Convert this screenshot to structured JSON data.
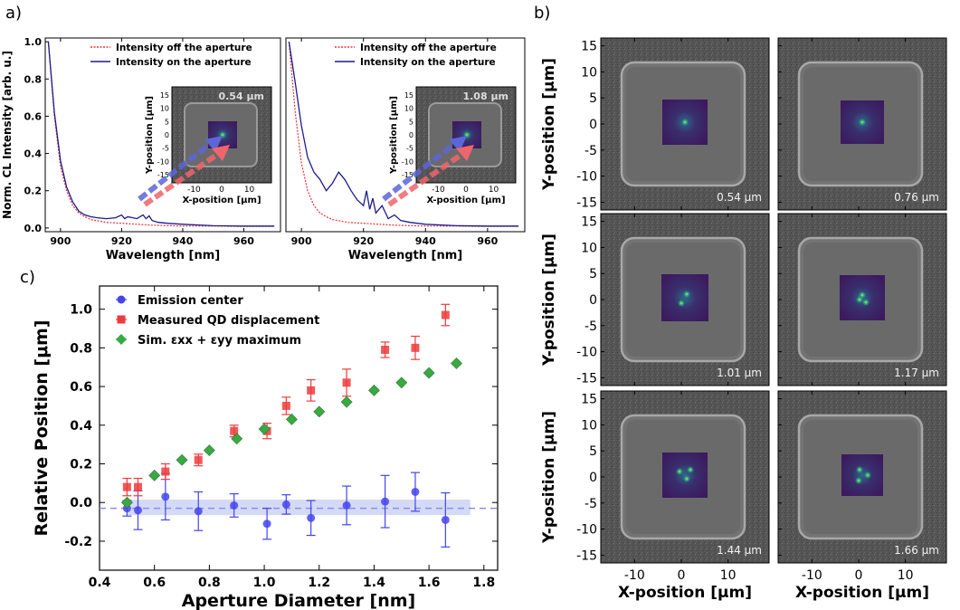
{
  "figure": {
    "panel_labels": [
      "a)",
      "b)",
      "c)"
    ]
  },
  "chart_data": [
    {
      "id": "a1",
      "type": "line",
      "xlabel": "Wavelength [nm]",
      "ylabel": "Norm. CL Intensity [arb. u.]",
      "xlim": [
        895,
        972
      ],
      "ylim": [
        -0.02,
        1.02
      ],
      "xticks": [
        900,
        920,
        940,
        960
      ],
      "yticks": [
        0.0,
        0.2,
        0.4,
        0.6,
        0.8,
        1.0
      ],
      "legend_position": "top-right",
      "series": [
        {
          "name": "Intensity off the aperture",
          "color": "#e8333a",
          "style": "dotted",
          "x": [
            896,
            898,
            900,
            902,
            904,
            906,
            908,
            910,
            915,
            920,
            925,
            930,
            940,
            950,
            960,
            970
          ],
          "y": [
            1.0,
            0.6,
            0.33,
            0.2,
            0.12,
            0.08,
            0.06,
            0.045,
            0.03,
            0.025,
            0.02,
            0.015,
            0.01,
            0.01,
            0.008,
            0.008
          ]
        },
        {
          "name": "Intensity on the aperture",
          "color": "#1c1c8c",
          "style": "solid",
          "x": [
            896,
            898,
            900,
            902,
            904,
            906,
            908,
            910,
            912,
            915,
            918,
            920,
            921,
            922,
            925,
            927,
            928,
            929,
            930,
            932,
            935,
            940,
            950,
            960,
            970
          ],
          "y": [
            1.0,
            0.62,
            0.36,
            0.22,
            0.14,
            0.09,
            0.07,
            0.06,
            0.055,
            0.05,
            0.055,
            0.07,
            0.05,
            0.06,
            0.05,
            0.07,
            0.05,
            0.065,
            0.04,
            0.03,
            0.025,
            0.02,
            0.012,
            0.01,
            0.01
          ]
        }
      ],
      "inset": {
        "label": "0.54 μm",
        "xlabel": "X-position [μm]",
        "ylabel": "Y-position [μm]",
        "xticks": [
          -10,
          0,
          10
        ],
        "yticks": [
          15,
          10,
          5,
          0,
          -5,
          -10,
          -15
        ]
      }
    },
    {
      "id": "a2",
      "type": "line",
      "xlabel": "Wavelength [nm]",
      "xlim": [
        895,
        972
      ],
      "ylim": [
        -0.02,
        1.02
      ],
      "xticks": [
        900,
        920,
        940,
        960
      ],
      "legend_position": "top-right",
      "series": [
        {
          "name": "Intensity off the aperture",
          "color": "#e8333a",
          "style": "dotted",
          "x": [
            896,
            898,
            900,
            902,
            904,
            906,
            908,
            910,
            915,
            920,
            925,
            930,
            940,
            950,
            960,
            970
          ],
          "y": [
            1.0,
            0.62,
            0.35,
            0.2,
            0.12,
            0.08,
            0.06,
            0.045,
            0.03,
            0.025,
            0.02,
            0.015,
            0.01,
            0.01,
            0.008,
            0.008
          ]
        },
        {
          "name": "Intensity on the aperture",
          "color": "#1c1c8c",
          "style": "solid",
          "x": [
            896,
            898,
            900,
            902,
            904,
            906,
            908,
            910,
            912,
            914,
            916,
            918,
            920,
            921,
            922,
            923,
            924,
            926,
            928,
            930,
            932,
            935,
            940,
            950,
            960,
            970
          ],
          "y": [
            1.0,
            0.78,
            0.55,
            0.38,
            0.3,
            0.26,
            0.2,
            0.24,
            0.3,
            0.26,
            0.2,
            0.15,
            0.12,
            0.2,
            0.1,
            0.16,
            0.08,
            0.12,
            0.05,
            0.07,
            0.04,
            0.03,
            0.02,
            0.012,
            0.01,
            0.01
          ]
        }
      ],
      "inset": {
        "label": "1.08 μm",
        "xlabel": "X-position [μm]",
        "ylabel": "Y-position [μm]",
        "xticks": [
          -10,
          0,
          10
        ],
        "yticks": [
          15,
          10,
          5,
          0,
          -5,
          -10,
          -15
        ]
      }
    },
    {
      "id": "c",
      "type": "scatter",
      "xlabel": "Aperture Diameter [nm]",
      "ylabel": "Relative Position [μm]",
      "xlim": [
        0.4,
        1.85
      ],
      "ylim": [
        -0.35,
        1.12
      ],
      "xticks": [
        0.4,
        0.6,
        0.8,
        1.0,
        1.2,
        1.4,
        1.6,
        1.8
      ],
      "yticks": [
        -0.2,
        0.0,
        0.2,
        0.4,
        0.6,
        0.8,
        1.0
      ],
      "legend_position": "top-left",
      "mean_line": {
        "y": -0.03,
        "band": [
          -0.065,
          0.015
        ],
        "x_range": [
          0.5,
          1.75
        ]
      },
      "series": [
        {
          "name": "Emission center",
          "marker": "circle",
          "color": "#4444ee",
          "x": [
            0.5,
            0.54,
            0.64,
            0.76,
            0.89,
            1.01,
            1.08,
            1.17,
            1.3,
            1.44,
            1.55,
            1.66
          ],
          "y": [
            -0.03,
            -0.04,
            0.03,
            -0.045,
            -0.015,
            -0.11,
            -0.01,
            -0.08,
            -0.015,
            0.005,
            0.055,
            -0.09
          ],
          "err": [
            0.04,
            0.1,
            0.12,
            0.1,
            0.06,
            0.08,
            0.05,
            0.09,
            0.1,
            0.135,
            0.1,
            0.14
          ]
        },
        {
          "name": "Measured QD displacement",
          "marker": "square",
          "color": "#ee3b3b",
          "x": [
            0.5,
            0.54,
            0.64,
            0.76,
            0.89,
            1.01,
            1.08,
            1.17,
            1.3,
            1.44,
            1.55,
            1.66
          ],
          "y": [
            0.08,
            0.08,
            0.16,
            0.22,
            0.37,
            0.37,
            0.5,
            0.58,
            0.62,
            0.79,
            0.8,
            0.97
          ],
          "err": [
            0.045,
            0.045,
            0.04,
            0.03,
            0.03,
            0.04,
            0.045,
            0.055,
            0.07,
            0.04,
            0.06,
            0.055
          ]
        },
        {
          "name": "Sim. εxx + εyy maximum",
          "marker": "diamond",
          "color": "#3aa843",
          "x": [
            0.5,
            0.6,
            0.7,
            0.8,
            0.9,
            1.0,
            1.1,
            1.2,
            1.3,
            1.4,
            1.5,
            1.6,
            1.7
          ],
          "y": [
            0.0,
            0.14,
            0.22,
            0.27,
            0.33,
            0.38,
            0.43,
            0.47,
            0.52,
            0.58,
            0.62,
            0.67,
            0.72
          ]
        }
      ]
    },
    {
      "id": "b",
      "type": "image-grid",
      "xlabel": "X-position [μm]",
      "ylabel": "Y-position [μm]",
      "xticks": [
        -10,
        0,
        10
      ],
      "yticks": [
        15,
        10,
        5,
        0,
        -5,
        -10,
        -15
      ],
      "labels": [
        "0.54 μm",
        "0.76 μm",
        "1.01 μm",
        "1.17 μm",
        "1.44 μm",
        "1.66 μm"
      ]
    }
  ]
}
